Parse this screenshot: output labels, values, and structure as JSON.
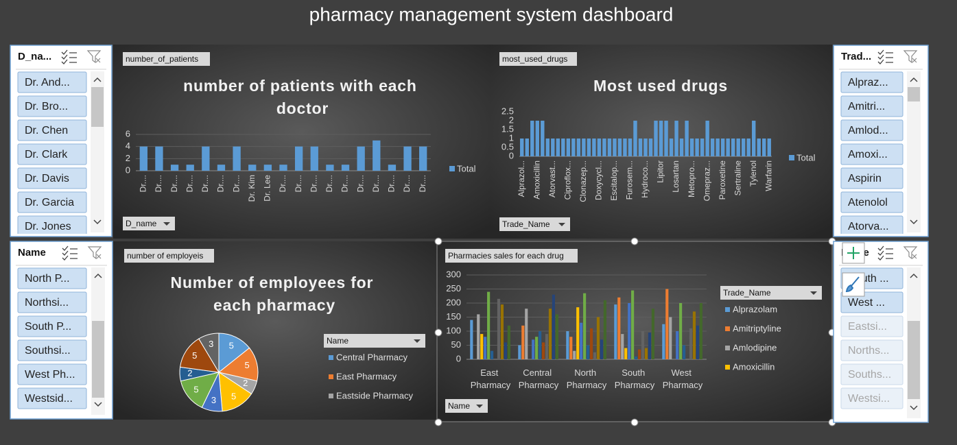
{
  "title": "pharmacy management system dashboard",
  "chart_data": [
    {
      "type": "bar",
      "title": "number of patients with each doctor",
      "field_button": "number_of_patients",
      "axis_field": "D_name",
      "categories": [
        "Dr....",
        "Dr....",
        "Dr....",
        "Dr....",
        "Dr....",
        "Dr....",
        "Dr....",
        "Dr. Kim",
        "Dr. Lee",
        "Dr....",
        "Dr....",
        "Dr....",
        "Dr....",
        "Dr....",
        "Dr....",
        "Dr....",
        "Dr....",
        "Dr....",
        "Dr...."
      ],
      "series": [
        {
          "name": "Total",
          "color": "#5b9bd5",
          "values": [
            4,
            4,
            1,
            1,
            4,
            1,
            4,
            1,
            1,
            1,
            4,
            4,
            1,
            1,
            4,
            5,
            1,
            4,
            4
          ]
        }
      ],
      "ylim": [
        0,
        6
      ],
      "yticks": [
        0,
        2,
        4,
        6
      ],
      "grid": true
    },
    {
      "type": "bar",
      "title": "Most used drugs",
      "field_button": "most_used_drugs",
      "axis_field": "Trade_Name",
      "categories": [
        "Alprazol...",
        null,
        null,
        "Amoxicillin",
        null,
        null,
        "Atorvast...",
        null,
        null,
        "Ciproflox...",
        null,
        null,
        "Clonazep...",
        null,
        null,
        "Doxycycl...",
        null,
        null,
        "Escitalop...",
        null,
        null,
        "Furosem...",
        null,
        null,
        "Hydroco...",
        null,
        null,
        "Lipitor",
        null,
        null,
        "Losartan",
        null,
        null,
        "Metopro...",
        null,
        null,
        "Omepraz...",
        null,
        null,
        "Paroxetine",
        null,
        null,
        "Sertraline",
        null,
        null,
        "Tylenol",
        null,
        null,
        "Warfarin"
      ],
      "series": [
        {
          "name": "Total",
          "color": "#5b9bd5",
          "values": [
            1,
            1,
            2,
            2,
            2,
            1,
            1,
            1,
            1,
            1,
            1,
            1,
            1,
            1,
            1,
            1,
            1,
            1,
            1,
            1,
            1,
            1,
            2,
            1,
            1,
            1,
            2,
            2,
            2,
            1,
            2,
            1,
            2,
            1,
            1,
            1,
            2,
            1,
            1,
            1,
            1,
            1,
            1,
            1,
            1,
            2,
            1,
            1,
            1
          ]
        }
      ],
      "ylim": [
        0,
        2.5
      ],
      "yticks": [
        0,
        0.5,
        1,
        1.5,
        2,
        2.5
      ],
      "grid": false
    },
    {
      "type": "pie",
      "title": "Number of employees for each pharmacy",
      "field_button": "number of employeis",
      "legend_title": "Name",
      "categories": [
        "Central Pharmacy",
        "East Pharmacy",
        "Eastside Pharmacy",
        null,
        null,
        null,
        null,
        null,
        null
      ],
      "values": [
        5,
        5,
        2,
        5,
        3,
        5,
        2,
        5,
        3
      ],
      "colors": [
        "#5b9bd5",
        "#ed7d31",
        "#a5a5a5",
        "#ffc000",
        "#4472c4",
        "#70ad47",
        "#255e91",
        "#9e480e",
        "#636363"
      ]
    },
    {
      "type": "grouped_bar",
      "field_button": "Pharmacies sales for each drug",
      "axis_field": "Name",
      "legend_title": "Trade_Name",
      "categories": [
        "East Pharmacy",
        "Central Pharmacy",
        "North Pharmacy",
        "South Pharmacy",
        "West Pharmacy"
      ],
      "series": [
        {
          "name": "Alprazolam",
          "color": "#5b9bd5",
          "values": [
            140,
            50,
            100,
            195,
            125
          ]
        },
        {
          "name": "Amitriptyline",
          "color": "#ed7d31",
          "values": [
            0,
            120,
            80,
            220,
            250
          ]
        },
        {
          "name": "Amlodipine",
          "color": "#a5a5a5",
          "values": [
            160,
            180,
            30,
            90,
            150
          ]
        },
        {
          "name": "Amoxicillin",
          "color": "#ffc000",
          "values": [
            90,
            0,
            185,
            40,
            0
          ]
        },
        {
          "color": "#4472c4",
          "values": [
            80,
            70,
            130,
            200,
            100
          ]
        },
        {
          "color": "#70ad47",
          "values": [
            240,
            80,
            235,
            245,
            200
          ]
        },
        {
          "color": "#255e91",
          "values": [
            30,
            100,
            50,
            10,
            50
          ]
        },
        {
          "color": "#9e480e",
          "values": [
            0,
            60,
            110,
            35,
            0
          ]
        },
        {
          "color": "#636363",
          "values": [
            215,
            90,
            25,
            100,
            110
          ]
        },
        {
          "color": "#997300",
          "values": [
            195,
            180,
            150,
            40,
            170
          ]
        },
        {
          "color": "#264478",
          "values": [
            60,
            230,
            70,
            95,
            120
          ]
        },
        {
          "color": "#43682b",
          "values": [
            120,
            160,
            210,
            180,
            200
          ]
        }
      ],
      "ylim": [
        0,
        300
      ],
      "yticks": [
        0,
        50,
        100,
        150,
        200,
        250,
        300
      ],
      "grid": true
    }
  ],
  "slicers": [
    {
      "header": "D_na...",
      "items": [
        {
          "label": "Dr. And..."
        },
        {
          "label": "Dr. Bro..."
        },
        {
          "label": "Dr. Chen"
        },
        {
          "label": "Dr. Clark"
        },
        {
          "label": "Dr. Davis"
        },
        {
          "label": "Dr. Garcia"
        },
        {
          "label": "Dr. Jones"
        }
      ]
    },
    {
      "header": "Name",
      "items": [
        {
          "label": "North P..."
        },
        {
          "label": "Northsi..."
        },
        {
          "label": "South P..."
        },
        {
          "label": "Southsi..."
        },
        {
          "label": "West Ph..."
        },
        {
          "label": "Westsid..."
        }
      ]
    },
    {
      "header": "Trad...",
      "items": [
        {
          "label": "Alpraz..."
        },
        {
          "label": "Amitri..."
        },
        {
          "label": "Amlod..."
        },
        {
          "label": "Amoxi..."
        },
        {
          "label": "Aspirin"
        },
        {
          "label": "Atenolol"
        },
        {
          "label": "Atorva..."
        }
      ]
    },
    {
      "header": "Name",
      "items": [
        {
          "label": "South ..."
        },
        {
          "label": "West ..."
        },
        {
          "label": "Eastsi...",
          "dimmed": true
        },
        {
          "label": "Norths...",
          "dimmed": true
        },
        {
          "label": "Souths...",
          "dimmed": true
        },
        {
          "label": "Westsi...",
          "dimmed": true
        }
      ]
    }
  ]
}
